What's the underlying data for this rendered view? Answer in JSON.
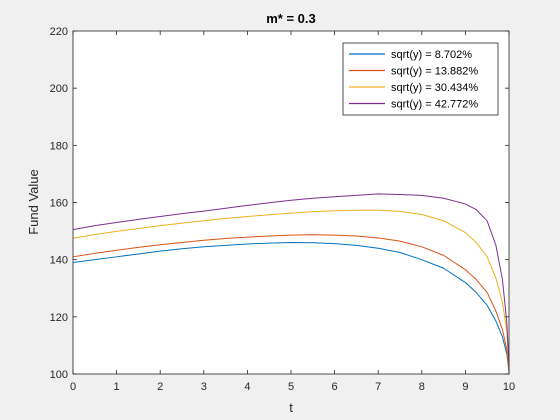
{
  "chart_data": {
    "type": "line",
    "title": "m* = 0.3",
    "xlabel": "t",
    "ylabel": "Fund Value",
    "xlim": [
      0,
      10
    ],
    "ylim": [
      100,
      220
    ],
    "xticks": [
      0,
      1,
      2,
      3,
      4,
      5,
      6,
      7,
      8,
      9,
      10
    ],
    "yticks": [
      100,
      120,
      140,
      160,
      180,
      200,
      220
    ],
    "grid": false,
    "legend_position": "top-right",
    "series": [
      {
        "name": "sqrt(y) = 8.702%",
        "color": "#0072BD",
        "x": [
          0,
          0.5,
          1,
          1.5,
          2,
          2.5,
          3,
          3.5,
          4,
          4.5,
          5,
          5.5,
          6,
          6.5,
          7,
          7.5,
          8,
          8.5,
          9,
          9.25,
          9.5,
          9.7,
          9.85,
          9.95,
          10
        ],
        "y": [
          139,
          140,
          141,
          142,
          143,
          143.8,
          144.5,
          145,
          145.5,
          145.8,
          146,
          145.9,
          145.6,
          145,
          144,
          142.5,
          140,
          137,
          132,
          128.5,
          124,
          118.5,
          113,
          107,
          101
        ]
      },
      {
        "name": "sqrt(y) = 13.882%",
        "color": "#D95319",
        "x": [
          0,
          0.5,
          1,
          1.5,
          2,
          2.5,
          3,
          3.5,
          4,
          4.5,
          5,
          5.5,
          6,
          6.5,
          7,
          7.5,
          8,
          8.5,
          9,
          9.25,
          9.5,
          9.7,
          9.85,
          9.95,
          10
        ],
        "y": [
          141,
          142.2,
          143.3,
          144.3,
          145.2,
          146,
          146.8,
          147.4,
          147.9,
          148.3,
          148.6,
          148.7,
          148.6,
          148.3,
          147.6,
          146.5,
          144.5,
          141.5,
          136.5,
          133,
          128.5,
          122,
          115.5,
          108.5,
          101
        ]
      },
      {
        "name": "sqrt(y) = 30.434%",
        "color": "#EDB120",
        "x": [
          0,
          0.5,
          1,
          1.5,
          2,
          2.5,
          3,
          3.5,
          4,
          4.5,
          5,
          5.5,
          6,
          6.5,
          7,
          7.5,
          8,
          8.5,
          9,
          9.25,
          9.5,
          9.7,
          9.85,
          9.95,
          10
        ],
        "y": [
          147.5,
          148.8,
          149.9,
          150.9,
          151.9,
          152.8,
          153.6,
          154.4,
          155.1,
          155.7,
          156.3,
          156.8,
          157.1,
          157.3,
          157.3,
          156.9,
          155.8,
          153.6,
          149.5,
          146,
          141,
          133.5,
          125,
          115,
          102
        ]
      },
      {
        "name": "sqrt(y) = 42.772%",
        "color": "#7E2F8E",
        "x": [
          0,
          0.5,
          1,
          1.5,
          2,
          2.5,
          3,
          3.5,
          4,
          4.5,
          5,
          5.5,
          6,
          6.5,
          7,
          7.5,
          8,
          8.5,
          9,
          9.25,
          9.5,
          9.7,
          9.85,
          9.95,
          10
        ],
        "y": [
          150.5,
          151.9,
          153,
          154.1,
          155.1,
          156.1,
          157,
          158,
          159,
          159.9,
          160.8,
          161.5,
          162,
          162.5,
          163,
          162.8,
          162.5,
          161.5,
          159.5,
          157.5,
          153.5,
          145,
          133,
          118,
          103
        ]
      }
    ]
  }
}
